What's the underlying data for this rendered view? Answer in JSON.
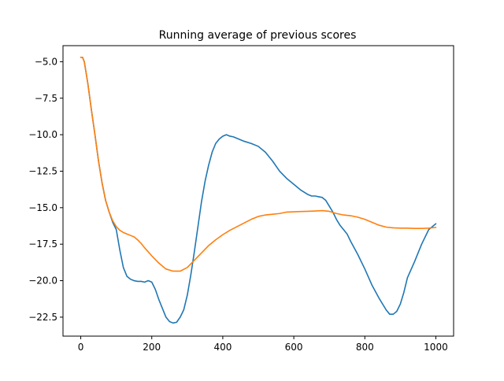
{
  "chart_data": {
    "type": "line",
    "title": "Running average of previous scores",
    "xlabel": "",
    "ylabel": "",
    "xlim": [
      -50,
      1050
    ],
    "ylim": [
      -23.8,
      -3.9
    ],
    "x_ticks": [
      0,
      200,
      400,
      600,
      800,
      1000
    ],
    "x_tick_labels": [
      "0",
      "200",
      "400",
      "600",
      "800",
      "1000"
    ],
    "y_ticks": [
      -5.0,
      -7.5,
      -10.0,
      -12.5,
      -15.0,
      -17.5,
      -20.0,
      -22.5
    ],
    "y_tick_labels": [
      "−5.0",
      "−7.5",
      "−10.0",
      "−12.5",
      "−15.0",
      "−17.5",
      "−20.0",
      "−22.5"
    ],
    "grid": false,
    "legend": "none",
    "series": [
      {
        "color": "#1f77b4",
        "x": [
          0,
          5,
          10,
          20,
          30,
          40,
          50,
          60,
          70,
          80,
          90,
          100,
          110,
          120,
          130,
          140,
          150,
          160,
          170,
          180,
          190,
          200,
          210,
          220,
          230,
          240,
          250,
          260,
          270,
          280,
          290,
          300,
          310,
          320,
          330,
          340,
          350,
          360,
          370,
          380,
          390,
          400,
          410,
          420,
          430,
          440,
          450,
          460,
          480,
          500,
          520,
          540,
          560,
          580,
          600,
          620,
          640,
          650,
          660,
          670,
          680,
          690,
          700,
          710,
          720,
          730,
          740,
          750,
          760,
          780,
          800,
          820,
          840,
          860,
          870,
          880,
          890,
          900,
          910,
          920,
          940,
          960,
          980,
          1000
        ],
        "y": [
          -4.7,
          -4.7,
          -5.0,
          -6.5,
          -8.3,
          -10.0,
          -11.8,
          -13.3,
          -14.5,
          -15.3,
          -16.0,
          -16.5,
          -17.9,
          -19.1,
          -19.7,
          -19.9,
          -20.0,
          -20.05,
          -20.05,
          -20.1,
          -20.0,
          -20.1,
          -20.6,
          -21.3,
          -21.9,
          -22.5,
          -22.8,
          -22.9,
          -22.85,
          -22.5,
          -22.0,
          -21.0,
          -19.6,
          -18.0,
          -16.3,
          -14.6,
          -13.2,
          -12.1,
          -11.2,
          -10.6,
          -10.3,
          -10.1,
          -10.0,
          -10.1,
          -10.15,
          -10.25,
          -10.35,
          -10.45,
          -10.6,
          -10.8,
          -11.2,
          -11.8,
          -12.5,
          -13.0,
          -13.4,
          -13.8,
          -14.1,
          -14.2,
          -14.2,
          -14.25,
          -14.3,
          -14.5,
          -14.9,
          -15.3,
          -15.8,
          -16.2,
          -16.5,
          -16.8,
          -17.3,
          -18.2,
          -19.2,
          -20.3,
          -21.2,
          -22.0,
          -22.3,
          -22.3,
          -22.1,
          -21.6,
          -20.8,
          -19.8,
          -18.7,
          -17.5,
          -16.5,
          -16.1
        ]
      },
      {
        "color": "#ff7f0e",
        "x": [
          0,
          5,
          10,
          20,
          30,
          40,
          50,
          60,
          70,
          80,
          90,
          100,
          110,
          120,
          130,
          140,
          150,
          160,
          170,
          180,
          200,
          220,
          240,
          260,
          280,
          300,
          320,
          340,
          360,
          380,
          400,
          420,
          440,
          460,
          480,
          500,
          520,
          540,
          560,
          580,
          600,
          620,
          640,
          660,
          680,
          700,
          720,
          740,
          760,
          780,
          800,
          820,
          840,
          860,
          880,
          900,
          920,
          940,
          960,
          980,
          1000
        ],
        "y": [
          -4.7,
          -4.7,
          -5.0,
          -6.5,
          -8.3,
          -10.0,
          -11.8,
          -13.3,
          -14.5,
          -15.3,
          -15.9,
          -16.3,
          -16.55,
          -16.7,
          -16.8,
          -16.9,
          -17.0,
          -17.2,
          -17.45,
          -17.75,
          -18.3,
          -18.8,
          -19.2,
          -19.35,
          -19.35,
          -19.1,
          -18.6,
          -18.1,
          -17.6,
          -17.2,
          -16.85,
          -16.55,
          -16.3,
          -16.05,
          -15.8,
          -15.6,
          -15.5,
          -15.45,
          -15.4,
          -15.3,
          -15.28,
          -15.26,
          -15.25,
          -15.23,
          -15.2,
          -15.25,
          -15.4,
          -15.5,
          -15.55,
          -15.65,
          -15.8,
          -16.0,
          -16.2,
          -16.33,
          -16.38,
          -16.4,
          -16.4,
          -16.42,
          -16.42,
          -16.4,
          -16.35
        ]
      }
    ]
  }
}
